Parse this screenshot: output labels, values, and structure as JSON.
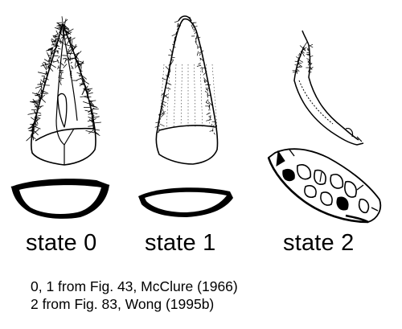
{
  "states": [
    {
      "id": "state-0",
      "label": "state 0"
    },
    {
      "id": "state-1",
      "label": "state 1"
    },
    {
      "id": "state-2",
      "label": "state 2"
    }
  ],
  "captions": [
    "0, 1 from Fig. 43, McClure (1966)",
    "2 from Fig. 83, Wong (1995b)"
  ]
}
